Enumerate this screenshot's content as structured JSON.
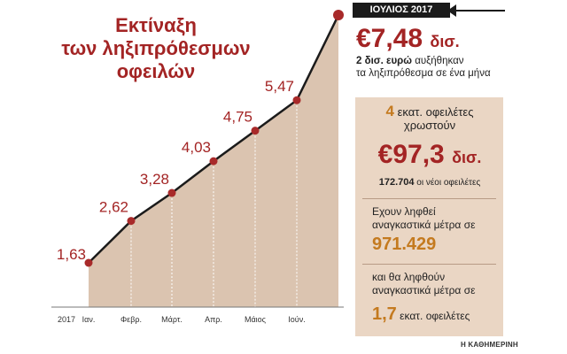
{
  "headline": {
    "line1": "Εκτίναξη",
    "line2": "των ληξιπρόθεσμων",
    "line3": "οφειλών"
  },
  "latest": {
    "month_label": "ΙΟΥΛΙΟΣ 2017",
    "amount": "€7,48",
    "unit": "δισ.",
    "increase_bold": "2 δισ. ευρώ",
    "increase_text": "αυξήθηκαν",
    "increase_line2": "τα ληξιπρόθεσμα σε ένα μήνα"
  },
  "panel": {
    "debtors_millions_num": "4",
    "debtors_millions_text": "εκατ. οφειλέτες",
    "owe_text": "χρωστούν",
    "owe_amount": "€97,3",
    "owe_unit": "δισ.",
    "new_debtors_num": "172.704",
    "new_debtors_text": "οι νέοι οφειλέτες",
    "measures_taken_line1": "Εχουν ληφθεί",
    "measures_taken_line2": "αναγκαστικά μέτρα σε",
    "measures_taken_num": "971.429",
    "measures_future_line1": "και θα ληφθούν",
    "measures_future_line2": "αναγκαστικά μέτρα σε",
    "measures_future_num": "1,7",
    "measures_future_text": "εκατ. οφειλέτες"
  },
  "source": "Η ΚΑΘΗΜΕΡΙΝΗ",
  "chart_data": {
    "type": "area",
    "title": "Εκτίναξη των ληξιπρόθεσμων οφειλών",
    "year_label": "2017",
    "categories": [
      "Ιαν.",
      "Φεβρ.",
      "Μάρτ.",
      "Απρ.",
      "Μάιος",
      "Ιούν.",
      "ΙΟΥΛΙΟΣ 2017"
    ],
    "values": [
      1.63,
      2.62,
      3.28,
      4.03,
      4.75,
      5.47,
      7.48
    ],
    "value_labels": [
      "1,63",
      "2,62",
      "3,28",
      "4,03",
      "4,75",
      "5,47",
      ""
    ],
    "unit": "δισ.",
    "ylim": [
      1.63,
      7.48
    ],
    "grid": false,
    "colors": {
      "area": "#dbc4b0",
      "line": "#1b1b1b",
      "marker": "#a82a2a",
      "label": "#a32424",
      "dashed": "#ffffff"
    }
  }
}
